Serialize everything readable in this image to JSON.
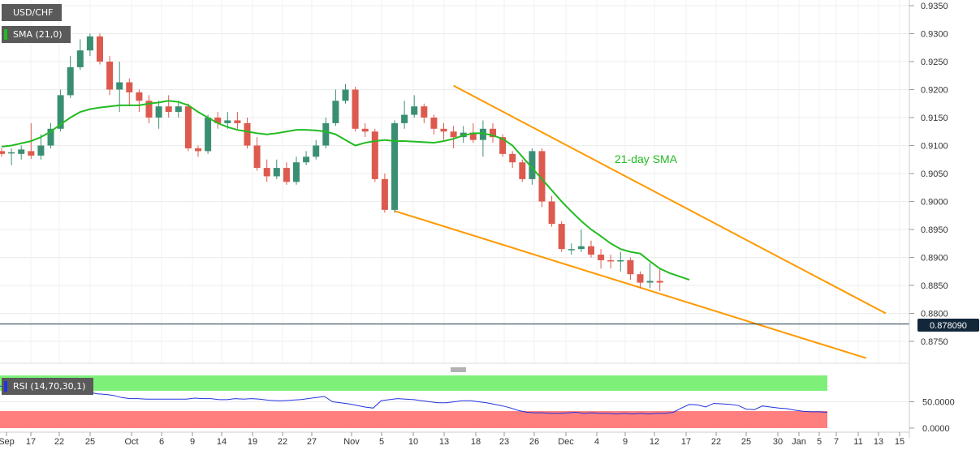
{
  "header": {
    "symbol": "USD/CHF",
    "indicator": "SMA (21,0)",
    "indicator_color": "#22bb22"
  },
  "price_panel": {
    "y_ticks": [
      "0.9350",
      "0.9300",
      "0.9250",
      "0.9200",
      "0.9150",
      "0.9100",
      "0.9050",
      "0.9000",
      "0.8950",
      "0.8900",
      "0.8850",
      "0.8800",
      "0.8750"
    ],
    "current_price": "0.878090",
    "sma_annotation": "21-day SMA",
    "colors": {
      "up": "#3a8f73",
      "down": "#dd5a4e",
      "sma": "#22bb22",
      "channel": "#ff9900",
      "price_line": "#1f3a4d"
    }
  },
  "rsi_panel": {
    "label": "RSI (14,70,30,1)",
    "y_ticks": [
      "50.0000",
      "0.0000"
    ],
    "overbought": 70,
    "oversold": 30,
    "colors": {
      "line": "#2233dd",
      "upper_zone": "#7ef07a",
      "lower_zone": "#ff7f7f"
    }
  },
  "x_axis": {
    "labels": [
      "Sep",
      "17",
      "22",
      "25",
      "Oct",
      "6",
      "9",
      "14",
      "19",
      "22",
      "27",
      "Nov",
      "5",
      "10",
      "13",
      "18",
      "23",
      "26",
      "Dec",
      "4",
      "9",
      "12",
      "17",
      "22",
      "25",
      "30",
      "Jan",
      "5",
      "7",
      "11",
      "13",
      "15"
    ]
  },
  "chart_data": {
    "type": "candlestick",
    "title": "USD/CHF",
    "series": [
      {
        "name": "SMA (21,0)",
        "values": [
          0.9098,
          0.91,
          0.9104,
          0.9108,
          0.9115,
          0.9125,
          0.9138,
          0.915,
          0.916,
          0.9165,
          0.9168,
          0.917,
          0.9172,
          0.9172,
          0.9172,
          0.9175,
          0.9177,
          0.918,
          0.9178,
          0.9172,
          0.916,
          0.915,
          0.914,
          0.9133,
          0.9128,
          0.9125,
          0.9122,
          0.912,
          0.9122,
          0.9125,
          0.9128,
          0.9128,
          0.9127,
          0.9125,
          0.912,
          0.911,
          0.91,
          0.9105,
          0.9108,
          0.911,
          0.9108,
          0.9108,
          0.9107,
          0.9106,
          0.9105,
          0.9108,
          0.9112,
          0.9118,
          0.9122,
          0.9122,
          0.9118,
          0.9112,
          0.91,
          0.908,
          0.906,
          0.904,
          0.902,
          0.9,
          0.8982,
          0.8965,
          0.895,
          0.8938,
          0.8925,
          0.8915,
          0.891,
          0.8907,
          0.8893,
          0.888,
          0.8872,
          0.8866,
          0.886
        ]
      }
    ],
    "candles": [
      [
        0.909,
        0.9085,
        0.9095,
        0.908
      ],
      [
        0.9086,
        0.9088,
        0.9095,
        0.9065
      ],
      [
        0.9085,
        0.9093,
        0.91,
        0.9075
      ],
      [
        0.909,
        0.9082,
        0.914,
        0.9076
      ],
      [
        0.9082,
        0.91,
        0.912,
        0.9075
      ],
      [
        0.91,
        0.913,
        0.914,
        0.9095
      ],
      [
        0.913,
        0.919,
        0.92,
        0.9125
      ],
      [
        0.919,
        0.924,
        0.926,
        0.9185
      ],
      [
        0.924,
        0.927,
        0.929,
        0.9235
      ],
      [
        0.927,
        0.9295,
        0.93,
        0.926
      ],
      [
        0.9295,
        0.925,
        0.93,
        0.9245
      ],
      [
        0.925,
        0.92,
        0.926,
        0.919
      ],
      [
        0.92,
        0.9213,
        0.925,
        0.916
      ],
      [
        0.9213,
        0.9195,
        0.922,
        0.917
      ],
      [
        0.9195,
        0.918,
        0.92,
        0.916
      ],
      [
        0.918,
        0.915,
        0.919,
        0.914
      ],
      [
        0.915,
        0.917,
        0.918,
        0.913
      ],
      [
        0.917,
        0.916,
        0.919,
        0.915
      ],
      [
        0.916,
        0.917,
        0.918,
        0.915
      ],
      [
        0.917,
        0.9095,
        0.9175,
        0.909
      ],
      [
        0.9095,
        0.909,
        0.91,
        0.908
      ],
      [
        0.909,
        0.915,
        0.9155,
        0.9085
      ],
      [
        0.915,
        0.914,
        0.916,
        0.913
      ],
      [
        0.914,
        0.9145,
        0.916,
        0.913
      ],
      [
        0.9145,
        0.914,
        0.916,
        0.913
      ],
      [
        0.914,
        0.91,
        0.915,
        0.9095
      ],
      [
        0.91,
        0.906,
        0.9115,
        0.9055
      ],
      [
        0.906,
        0.9045,
        0.9075,
        0.9035
      ],
      [
        0.9045,
        0.906,
        0.9075,
        0.904
      ],
      [
        0.906,
        0.9035,
        0.907,
        0.903
      ],
      [
        0.9035,
        0.907,
        0.908,
        0.903
      ],
      [
        0.907,
        0.908,
        0.909,
        0.9065
      ],
      [
        0.908,
        0.91,
        0.911,
        0.9075
      ],
      [
        0.91,
        0.914,
        0.915,
        0.9095
      ],
      [
        0.914,
        0.918,
        0.92,
        0.9135
      ],
      [
        0.918,
        0.92,
        0.921,
        0.9175
      ],
      [
        0.92,
        0.913,
        0.9205,
        0.9125
      ],
      [
        0.913,
        0.9125,
        0.914,
        0.9115
      ],
      [
        0.9125,
        0.904,
        0.913,
        0.9035
      ],
      [
        0.904,
        0.8985,
        0.905,
        0.898
      ],
      [
        0.8985,
        0.914,
        0.9145,
        0.898
      ],
      [
        0.914,
        0.9155,
        0.918,
        0.913
      ],
      [
        0.9155,
        0.917,
        0.919,
        0.915
      ],
      [
        0.917,
        0.915,
        0.9175,
        0.914
      ],
      [
        0.915,
        0.913,
        0.9155,
        0.912
      ],
      [
        0.913,
        0.9125,
        0.914,
        0.911
      ],
      [
        0.9125,
        0.9115,
        0.9135,
        0.9095
      ],
      [
        0.9115,
        0.9123,
        0.9135,
        0.9105
      ],
      [
        0.9123,
        0.911,
        0.914,
        0.9105
      ],
      [
        0.911,
        0.913,
        0.9145,
        0.908
      ],
      [
        0.913,
        0.9115,
        0.914,
        0.9105
      ],
      [
        0.9115,
        0.9085,
        0.912,
        0.908
      ],
      [
        0.9085,
        0.907,
        0.909,
        0.906
      ],
      [
        0.907,
        0.904,
        0.9075,
        0.9035
      ],
      [
        0.904,
        0.909,
        0.9095,
        0.903
      ],
      [
        0.909,
        0.9,
        0.9095,
        0.899
      ],
      [
        0.9,
        0.896,
        0.901,
        0.8955
      ],
      [
        0.896,
        0.8915,
        0.8965,
        0.891
      ],
      [
        0.8915,
        0.8915,
        0.8925,
        0.8905
      ],
      [
        0.8915,
        0.892,
        0.895,
        0.891
      ],
      [
        0.892,
        0.8905,
        0.893,
        0.89
      ],
      [
        0.8905,
        0.8895,
        0.8915,
        0.888
      ],
      [
        0.8895,
        0.8893,
        0.8905,
        0.888
      ],
      [
        0.8893,
        0.8895,
        0.891,
        0.8875
      ],
      [
        0.8895,
        0.887,
        0.89,
        0.886
      ],
      [
        0.887,
        0.8855,
        0.8875,
        0.8845
      ],
      [
        0.8855,
        0.8858,
        0.889,
        0.8845
      ],
      [
        0.8858,
        0.8855,
        0.888,
        0.884
      ]
    ],
    "rsi": [
      80,
      74,
      71,
      70,
      69,
      69,
      68,
      68,
      67,
      68,
      67,
      68,
      65,
      64,
      62,
      58,
      56,
      56,
      55,
      55,
      55,
      55,
      55,
      55,
      57,
      56,
      56,
      54,
      54,
      56,
      55,
      56,
      55,
      53,
      52,
      52,
      53,
      54,
      56,
      58,
      60,
      50,
      48,
      46,
      43,
      40,
      38,
      52,
      54,
      56,
      55,
      54,
      52,
      50,
      48,
      48,
      50,
      52,
      52,
      50,
      48,
      45,
      42,
      38,
      33,
      30,
      29,
      29,
      28,
      28,
      29,
      30,
      28,
      29,
      28,
      28,
      27,
      28,
      27,
      28,
      27,
      28,
      28,
      30,
      38,
      45,
      44,
      40,
      47,
      46,
      45,
      43,
      36,
      35,
      42,
      40,
      38,
      37,
      34,
      32,
      31,
      31,
      30
    ],
    "x_tick_labels": [
      "Sep",
      "17",
      "22",
      "25",
      "Oct",
      "6",
      "9",
      "14",
      "19",
      "22",
      "27",
      "Nov",
      "5",
      "10",
      "13",
      "18",
      "23",
      "26",
      "Dec",
      "4",
      "9",
      "12",
      "17",
      "22",
      "25",
      "30",
      "Jan",
      "5",
      "7",
      "11",
      "13",
      "15"
    ],
    "y_range": [
      0.87,
      0.935
    ],
    "annotations": [
      "21-day SMA"
    ]
  }
}
